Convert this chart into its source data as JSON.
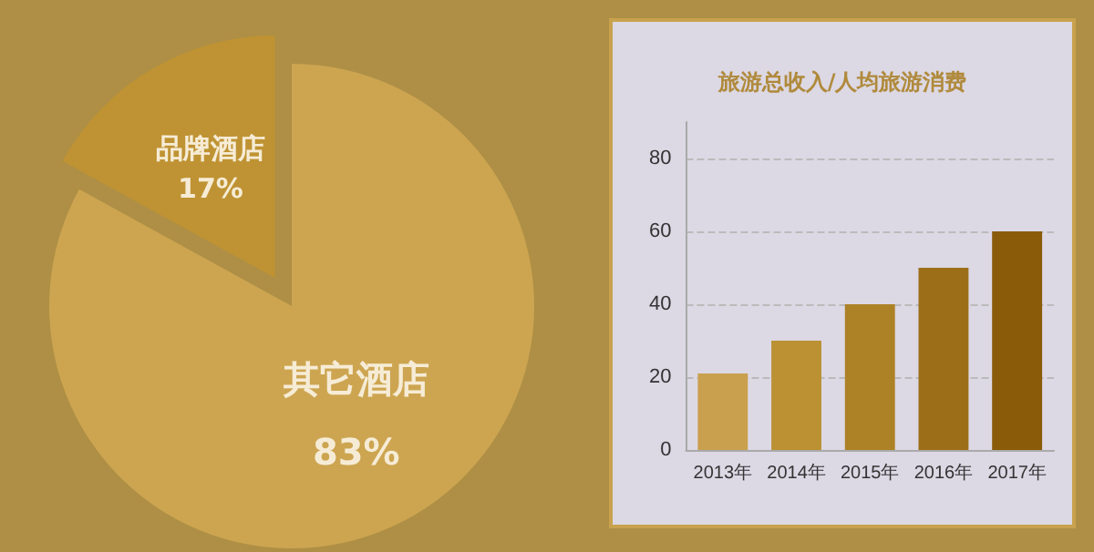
{
  "chart_data": [
    {
      "type": "pie",
      "categories": [
        "品牌酒店",
        "其它酒店"
      ],
      "values": [
        17,
        83
      ],
      "colors": [
        "#bf9333",
        "#cda551"
      ],
      "value_labels": [
        "17%",
        "83%"
      ],
      "legend": false
    },
    {
      "type": "bar",
      "title": "旅游总收入/人均旅游消费",
      "categories": [
        "2013年",
        "2014年",
        "2015年",
        "2016年",
        "2017年"
      ],
      "values": [
        21,
        30,
        40,
        50,
        60
      ],
      "colors": [
        "#c9a04e",
        "#bb9134",
        "#ad8226",
        "#9c6e18",
        "#8a5c0a"
      ],
      "ylim": [
        0,
        90
      ],
      "yticks": [
        0,
        20,
        40,
        60,
        80
      ],
      "grid": "y",
      "legend": false
    }
  ]
}
